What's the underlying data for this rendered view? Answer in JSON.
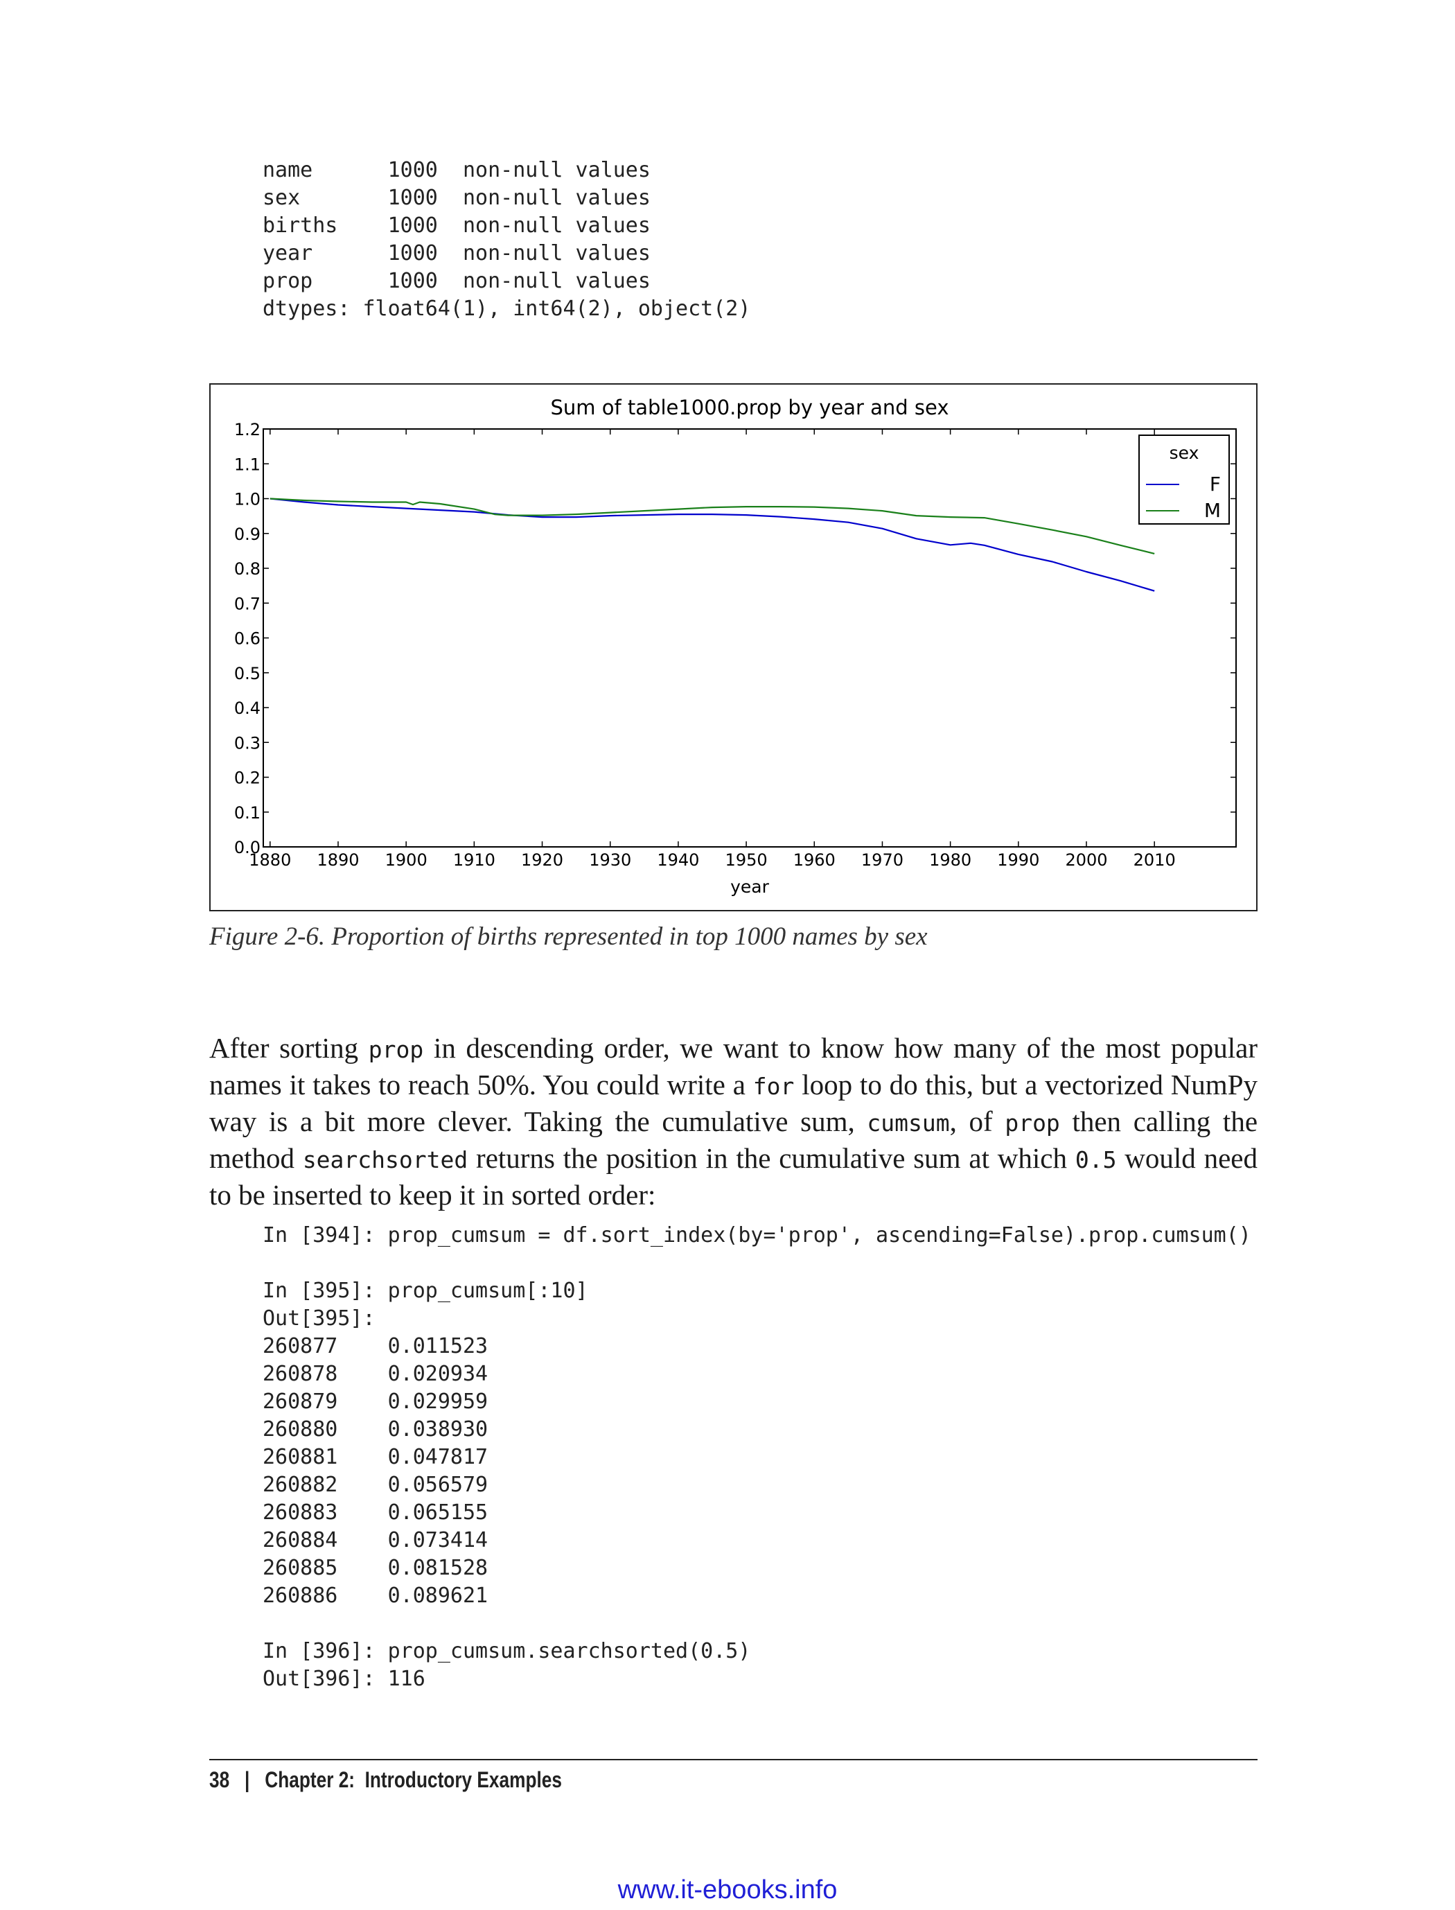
{
  "code_top": [
    "name      1000  non-null values",
    "sex       1000  non-null values",
    "births    1000  non-null values",
    "year      1000  non-null values",
    "prop      1000  non-null values",
    "dtypes: float64(1), int64(2), object(2)"
  ],
  "chart_data": {
    "type": "line",
    "title": "Sum of table1000.prop by year and sex",
    "xlabel": "year",
    "ylabel": "",
    "xlim": [
      1879,
      2022
    ],
    "ylim": [
      0.0,
      1.2
    ],
    "xticks": [
      "1880",
      "1890",
      "1900",
      "1910",
      "1920",
      "1930",
      "1940",
      "1950",
      "1960",
      "1970",
      "1980",
      "1990",
      "2000",
      "2010"
    ],
    "yticks": [
      "0.0",
      "0.1",
      "0.2",
      "0.3",
      "0.4",
      "0.5",
      "0.6",
      "0.7",
      "0.8",
      "0.9",
      "1.0",
      "1.1",
      "1.2"
    ],
    "legend": {
      "title": "sex",
      "position": "top-right"
    },
    "series": [
      {
        "name": "F",
        "color": "#0000cc",
        "x": [
          1880,
          1885,
          1890,
          1895,
          1900,
          1905,
          1910,
          1915,
          1920,
          1925,
          1930,
          1935,
          1940,
          1945,
          1950,
          1955,
          1960,
          1965,
          1970,
          1975,
          1980,
          1983,
          1985,
          1990,
          1995,
          2000,
          2005,
          2010
        ],
        "values": [
          1.0,
          0.99,
          0.982,
          0.977,
          0.972,
          0.967,
          0.962,
          0.953,
          0.947,
          0.947,
          0.951,
          0.953,
          0.955,
          0.955,
          0.953,
          0.948,
          0.941,
          0.932,
          0.914,
          0.885,
          0.867,
          0.872,
          0.866,
          0.84,
          0.819,
          0.79,
          0.764,
          0.735
        ]
      },
      {
        "name": "M",
        "color": "#1a801a",
        "x": [
          1880,
          1885,
          1890,
          1895,
          1900,
          1901,
          1902,
          1905,
          1910,
          1913,
          1915,
          1920,
          1925,
          1930,
          1935,
          1940,
          1945,
          1950,
          1955,
          1960,
          1965,
          1970,
          1975,
          1980,
          1985,
          1990,
          1995,
          2000,
          2005,
          2010
        ],
        "values": [
          1.0,
          0.995,
          0.992,
          0.99,
          0.99,
          0.983,
          0.99,
          0.985,
          0.97,
          0.955,
          0.952,
          0.952,
          0.955,
          0.96,
          0.965,
          0.97,
          0.975,
          0.977,
          0.977,
          0.976,
          0.972,
          0.965,
          0.951,
          0.947,
          0.945,
          0.928,
          0.91,
          0.891,
          0.866,
          0.842
        ]
      }
    ]
  },
  "caption": "Figure 2-6. Proportion of births represented in top 1000 names by sex",
  "paragraph": [
    {
      "t": "After sorting "
    },
    {
      "t": "prop",
      "mono": true
    },
    {
      "t": " in descending order, we want to know how many of the most popular names it takes to reach 50%. You could write a "
    },
    {
      "t": "for",
      "mono": true
    },
    {
      "t": " loop to do this, but a vectorized NumPy way is a bit more clever. Taking the cumulative sum, "
    },
    {
      "t": "cumsum",
      "mono": true
    },
    {
      "t": ", of "
    },
    {
      "t": "prop",
      "mono": true
    },
    {
      "t": " then calling the method "
    },
    {
      "t": "searchsorted",
      "mono": true
    },
    {
      "t": " returns the position in the cumulative sum at which "
    },
    {
      "t": "0.5",
      "mono": true
    },
    {
      "t": " would need to be inserted to keep it in sorted order:"
    }
  ],
  "code_bottom": [
    "In [394]: prop_cumsum = df.sort_index(by='prop', ascending=False).prop.cumsum()",
    "",
    "In [395]: prop_cumsum[:10]",
    "Out[395]:",
    "260877    0.011523",
    "260878    0.020934",
    "260879    0.029959",
    "260880    0.038930",
    "260881    0.047817",
    "260882    0.056579",
    "260883    0.065155",
    "260884    0.073414",
    "260885    0.081528",
    "260886    0.089621",
    "",
    "In [396]: prop_cumsum.searchsorted(0.5)",
    "Out[396]: 116"
  ],
  "footer": {
    "page_number": "38",
    "separator": "|",
    "chapter": "Chapter 2:  Introductory Examples"
  },
  "watermark": "www.it-ebooks.info"
}
